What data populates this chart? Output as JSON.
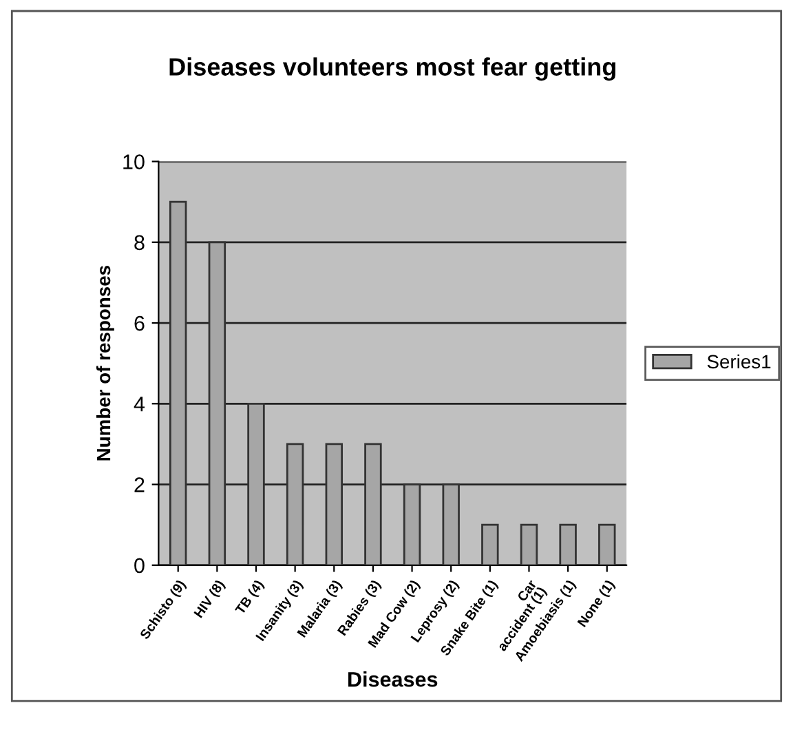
{
  "chart_data": {
    "type": "bar",
    "title": "Diseases volunteers most fear getting",
    "xlabel": "Diseases",
    "ylabel": "Number of responses",
    "categories": [
      "Schisto (9)",
      "HIV (8)",
      "TB (4)",
      "Insanity (3)",
      "Malaria (3)",
      "Rabies (3)",
      "Mad Cow (2)",
      "Leprosy (2)",
      "Snake Bite (1)",
      "Car\naccident (1)",
      "Amoebiasis (1)",
      "None (1)"
    ],
    "series": [
      {
        "name": "Series1",
        "color": "#a6a6a6",
        "values": [
          9,
          8,
          4,
          3,
          3,
          3,
          2,
          2,
          1,
          1,
          1,
          1
        ]
      }
    ],
    "ylim": [
      0,
      10
    ],
    "yticks": [
      0,
      2,
      4,
      6,
      8,
      10
    ],
    "grid": "y",
    "legend": "right"
  }
}
